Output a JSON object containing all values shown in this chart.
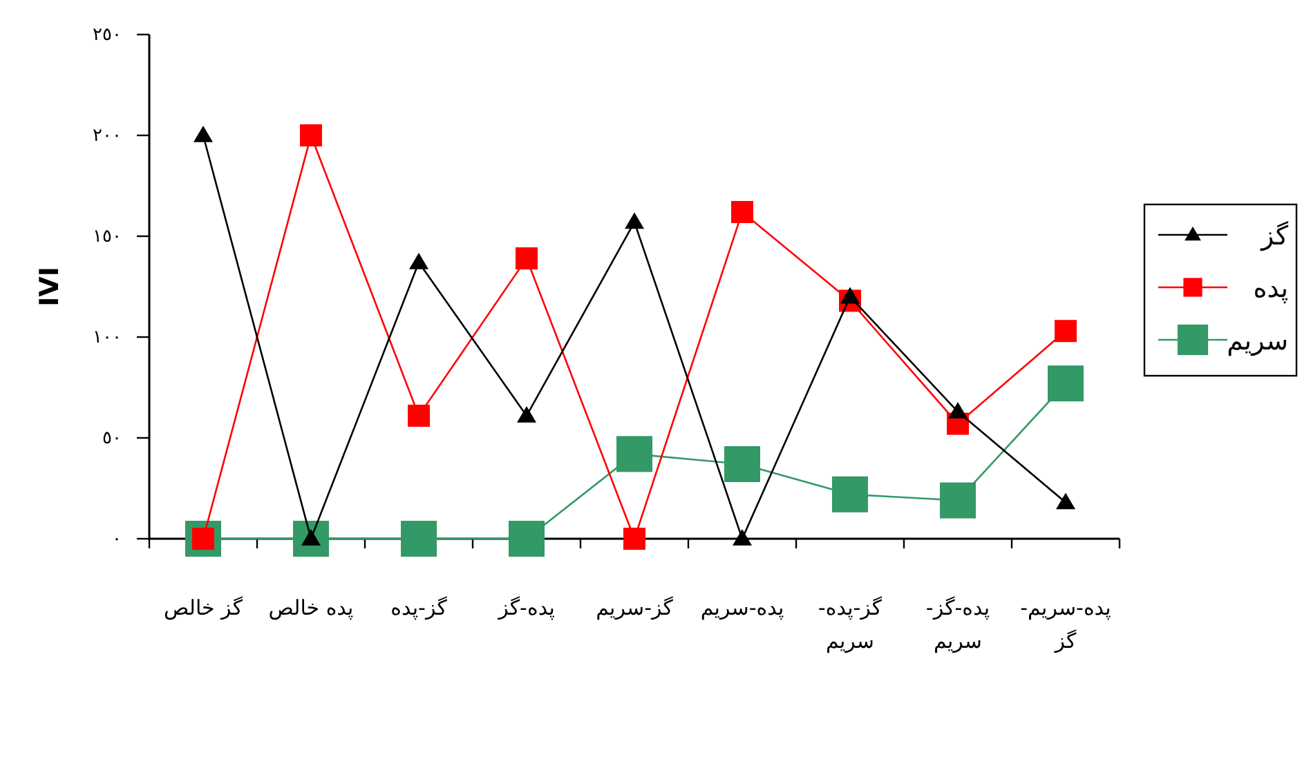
{
  "chart_data": {
    "type": "line",
    "ylabel": "IVI",
    "categories": [
      "گز خالص",
      "پده خالص",
      "گز-پده",
      "پده-گز",
      "گز-سریم",
      "پده-سریم",
      "گز-پده-سریم",
      "پده-گز-سریم",
      "پده-سریم-گز"
    ],
    "series": [
      {
        "name": "گز",
        "color": "#000000",
        "marker": "triangle",
        "values": [
          200,
          0,
          137,
          61,
          157,
          0,
          120,
          63,
          18
        ]
      },
      {
        "name": "پده",
        "color": "#ff0000",
        "marker": "square",
        "values": [
          0,
          200,
          61,
          139,
          0,
          162,
          118,
          57,
          103
        ]
      },
      {
        "name": "سریم",
        "color": "#339966",
        "marker": "square",
        "values": [
          0,
          0,
          0,
          0,
          42,
          37,
          22,
          19,
          77
        ]
      }
    ],
    "ylim": [
      0,
      250
    ],
    "yticks": [
      {
        "value": 0,
        "label": "٠"
      },
      {
        "value": 50,
        "label": "٥٠"
      },
      {
        "value": 100,
        "label": "١٠٠"
      },
      {
        "value": 150,
        "label": "١٥٠"
      },
      {
        "value": 200,
        "label": "٢٠٠"
      },
      {
        "value": 250,
        "label": "٢٥٠"
      }
    ],
    "grid": false,
    "legend": "right",
    "line_style": "solid"
  }
}
